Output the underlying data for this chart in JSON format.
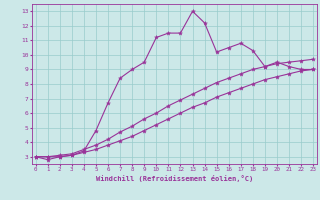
{
  "xlabel": "Windchill (Refroidissement éolien,°C)",
  "background_color": "#cce8e8",
  "line_color": "#993399",
  "grid_color": "#99cccc",
  "x_main": [
    0,
    1,
    2,
    3,
    4,
    5,
    6,
    7,
    8,
    9,
    10,
    11,
    12,
    13,
    14,
    15,
    16,
    17,
    18,
    19,
    20,
    21,
    22,
    23
  ],
  "y_main": [
    3.0,
    2.8,
    3.0,
    3.1,
    3.4,
    4.8,
    6.7,
    8.4,
    9.0,
    9.5,
    11.2,
    11.5,
    11.5,
    13.0,
    12.2,
    10.2,
    10.5,
    10.8,
    10.3,
    9.2,
    9.5,
    9.2,
    9.0,
    9.0
  ],
  "y_line1": [
    3.0,
    3.0,
    3.1,
    3.2,
    3.5,
    3.8,
    4.2,
    4.7,
    5.1,
    5.6,
    6.0,
    6.5,
    6.9,
    7.3,
    7.7,
    8.1,
    8.4,
    8.7,
    9.0,
    9.2,
    9.4,
    9.5,
    9.6,
    9.7
  ],
  "y_line2": [
    3.0,
    3.0,
    3.0,
    3.1,
    3.3,
    3.5,
    3.8,
    4.1,
    4.4,
    4.8,
    5.2,
    5.6,
    6.0,
    6.4,
    6.7,
    7.1,
    7.4,
    7.7,
    8.0,
    8.3,
    8.5,
    8.7,
    8.9,
    9.0
  ],
  "ylim": [
    2.5,
    13.5
  ],
  "yticks": [
    3,
    4,
    5,
    6,
    7,
    8,
    9,
    10,
    11,
    12,
    13
  ],
  "xticks": [
    0,
    1,
    2,
    3,
    4,
    5,
    6,
    7,
    8,
    9,
    10,
    11,
    12,
    13,
    14,
    15,
    16,
    17,
    18,
    19,
    20,
    21,
    22,
    23
  ],
  "xlim": [
    -0.3,
    23.3
  ],
  "markersize": 3,
  "linewidth": 0.8
}
